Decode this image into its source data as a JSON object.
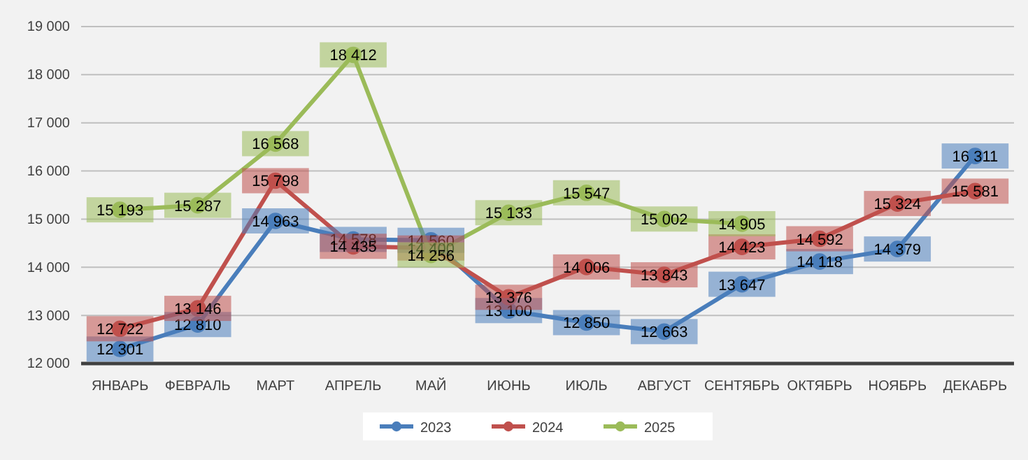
{
  "chart_data": {
    "type": "line",
    "categories": [
      "ЯНВАРЬ",
      "ФЕВРАЛЬ",
      "МАРТ",
      "АПРЕЛЬ",
      "МАЙ",
      "ИЮНЬ",
      "ИЮЛЬ",
      "АВГУСТ",
      "СЕНТЯБРЬ",
      "ОКТЯБРЬ",
      "НОЯБРЬ",
      "ДЕКАБРЬ"
    ],
    "series": [
      {
        "name": "2023",
        "color": "#4a7ebb",
        "values": [
          12301,
          12810,
          14963,
          14578,
          14560,
          13100,
          12850,
          12663,
          13647,
          14118,
          14379,
          16311
        ]
      },
      {
        "name": "2024",
        "color": "#c0504d",
        "values": [
          12722,
          13146,
          15798,
          14435,
          14400,
          13376,
          14006,
          13843,
          14423,
          14592,
          15324,
          15581
        ]
      },
      {
        "name": "2025",
        "color": "#9bbb59",
        "values": [
          15193,
          15287,
          16568,
          18412,
          14256,
          15133,
          15547,
          15002,
          14905,
          null,
          null,
          null
        ]
      }
    ],
    "ylim": [
      12000,
      19000
    ],
    "yticks": [
      {
        "value": 12000,
        "label": "12 000"
      },
      {
        "value": 13000,
        "label": "13 000"
      },
      {
        "value": 14000,
        "label": "14 000"
      },
      {
        "value": 15000,
        "label": "15 000"
      },
      {
        "value": 16000,
        "label": "16 000"
      },
      {
        "value": 17000,
        "label": "17 000"
      },
      {
        "value": 18000,
        "label": "18 000"
      },
      {
        "value": 19000,
        "label": "19 000"
      }
    ],
    "grid": "y",
    "legend": "bottom",
    "marker": "circle",
    "line_style": "solid",
    "data_labels": true
  }
}
